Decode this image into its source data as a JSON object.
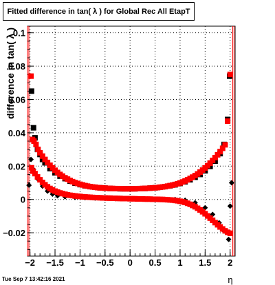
{
  "title": "Fitted difference in tan( λ ) for Global Rec All EtapT",
  "timestamp": "Tue Sep  7 13:42:16 2021",
  "chart_data": {
    "type": "scatter",
    "title": "Fitted difference in tan( λ ) for Global Rec All EtapT",
    "xlabel": "η",
    "ylabel": "difference in tan( λ )",
    "xlim": [
      -2.05,
      2.1
    ],
    "ylim": [
      -0.034,
      0.104
    ],
    "xticks": [
      -2,
      -1.5,
      -1,
      -0.5,
      0,
      0.5,
      1,
      1.5,
      2
    ],
    "xtick_labels": [
      "−2",
      "−1.5",
      "−1",
      "−0.5",
      "0",
      "0.5",
      "1",
      "1.5",
      "2"
    ],
    "yticks": [
      -0.02,
      0,
      0.02,
      0.04,
      0.06,
      0.08,
      0.1
    ],
    "ytick_labels": [
      "−0.02",
      "0",
      "0.02",
      "0.04",
      "0.06",
      "0.08",
      "0.1"
    ],
    "grid": true,
    "vertical_lines_red": [
      -2.05,
      2.05
    ],
    "series": [
      {
        "style": "black-square",
        "color": "#000000",
        "points": [
          [
            -1.97,
            0.065
          ],
          [
            -1.93,
            0.043
          ],
          [
            -1.9,
            0.037
          ],
          [
            -1.85,
            0.03
          ],
          [
            -1.8,
            0.027
          ],
          [
            -1.75,
            0.024
          ],
          [
            -1.7,
            0.022
          ],
          [
            -1.6,
            0.0185
          ],
          [
            -1.5,
            0.016
          ],
          [
            -1.4,
            0.014
          ],
          [
            -1.3,
            0.0125
          ],
          [
            -1.2,
            0.011
          ],
          [
            -1.1,
            0.0098
          ],
          [
            -1.0,
            0.0089
          ],
          [
            -0.9,
            0.0082
          ],
          [
            -0.8,
            0.0077
          ],
          [
            -0.7,
            0.0073
          ],
          [
            -0.6,
            0.007
          ],
          [
            -0.5,
            0.0068
          ],
          [
            -0.4,
            0.0066
          ],
          [
            -0.3,
            0.0065
          ],
          [
            -0.2,
            0.0064
          ],
          [
            -0.1,
            0.0064
          ],
          [
            0.0,
            0.0064
          ],
          [
            0.1,
            0.0064
          ],
          [
            0.2,
            0.0065
          ],
          [
            0.3,
            0.0066
          ],
          [
            0.4,
            0.0068
          ],
          [
            0.5,
            0.007
          ],
          [
            0.6,
            0.0073
          ],
          [
            0.7,
            0.0077
          ],
          [
            0.8,
            0.0082
          ],
          [
            0.9,
            0.0088
          ],
          [
            1.0,
            0.0096
          ],
          [
            1.1,
            0.0106
          ],
          [
            1.2,
            0.0118
          ],
          [
            1.3,
            0.0133
          ],
          [
            1.4,
            0.015
          ],
          [
            1.5,
            0.0172
          ],
          [
            1.6,
            0.0198
          ],
          [
            1.7,
            0.023
          ],
          [
            1.8,
            0.0275
          ],
          [
            1.88,
            0.033
          ],
          [
            1.95,
            0.048
          ],
          [
            1.99,
            0.074
          ]
        ]
      },
      {
        "style": "red-square",
        "color": "#ff0000",
        "points": [
          [
            -1.98,
            0.074
          ],
          [
            -1.95,
            0.036
          ],
          [
            -1.92,
            0.035
          ],
          [
            -1.88,
            0.033
          ],
          [
            -1.84,
            0.03
          ],
          [
            -1.8,
            0.028
          ],
          [
            -1.75,
            0.026
          ],
          [
            -1.7,
            0.024
          ],
          [
            -1.65,
            0.0222
          ],
          [
            -1.6,
            0.0205
          ],
          [
            -1.55,
            0.019
          ],
          [
            -1.5,
            0.0175
          ],
          [
            -1.45,
            0.0162
          ],
          [
            -1.4,
            0.015
          ],
          [
            -1.35,
            0.014
          ],
          [
            -1.3,
            0.013
          ],
          [
            -1.25,
            0.0122
          ],
          [
            -1.2,
            0.0114
          ],
          [
            -1.15,
            0.0107
          ],
          [
            -1.1,
            0.0101
          ],
          [
            -1.05,
            0.0096
          ],
          [
            -1.0,
            0.0091
          ],
          [
            -0.95,
            0.0087
          ],
          [
            -0.9,
            0.0083
          ],
          [
            -0.85,
            0.008
          ],
          [
            -0.8,
            0.0077
          ],
          [
            -0.75,
            0.0075
          ],
          [
            -0.7,
            0.0073
          ],
          [
            -0.65,
            0.0071
          ],
          [
            -0.6,
            0.007
          ],
          [
            -0.55,
            0.0069
          ],
          [
            -0.5,
            0.0068
          ],
          [
            -0.45,
            0.0067
          ],
          [
            -0.4,
            0.0066
          ],
          [
            -0.35,
            0.0066
          ],
          [
            -0.3,
            0.0065
          ],
          [
            -0.25,
            0.0065
          ],
          [
            -0.2,
            0.0065
          ],
          [
            -0.15,
            0.0064
          ],
          [
            -0.1,
            0.0064
          ],
          [
            -0.05,
            0.0064
          ],
          [
            0.0,
            0.0064
          ],
          [
            0.05,
            0.0064
          ],
          [
            0.1,
            0.0064
          ],
          [
            0.15,
            0.0065
          ],
          [
            0.2,
            0.0065
          ],
          [
            0.25,
            0.0066
          ],
          [
            0.3,
            0.0066
          ],
          [
            0.35,
            0.0067
          ],
          [
            0.4,
            0.0068
          ],
          [
            0.45,
            0.0069
          ],
          [
            0.5,
            0.007
          ],
          [
            0.55,
            0.0071
          ],
          [
            0.6,
            0.0073
          ],
          [
            0.65,
            0.0075
          ],
          [
            0.7,
            0.0077
          ],
          [
            0.75,
            0.008
          ],
          [
            0.8,
            0.0083
          ],
          [
            0.85,
            0.0086
          ],
          [
            0.9,
            0.009
          ],
          [
            0.95,
            0.0094
          ],
          [
            1.0,
            0.0099
          ],
          [
            1.05,
            0.0105
          ],
          [
            1.1,
            0.0111
          ],
          [
            1.15,
            0.0118
          ],
          [
            1.2,
            0.0126
          ],
          [
            1.25,
            0.0134
          ],
          [
            1.3,
            0.0143
          ],
          [
            1.35,
            0.0153
          ],
          [
            1.4,
            0.0164
          ],
          [
            1.45,
            0.0176
          ],
          [
            1.5,
            0.0189
          ],
          [
            1.55,
            0.0203
          ],
          [
            1.6,
            0.0218
          ],
          [
            1.65,
            0.0234
          ],
          [
            1.7,
            0.0251
          ],
          [
            1.75,
            0.0268
          ],
          [
            1.8,
            0.0287
          ],
          [
            1.85,
            0.0307
          ],
          [
            1.9,
            0.0328
          ],
          [
            1.95,
            0.047
          ],
          [
            2.0,
            0.075
          ]
        ]
      },
      {
        "style": "black-diamond",
        "color": "#000000",
        "points": [
          [
            -2.02,
            0.0085
          ],
          [
            -1.98,
            0.024
          ],
          [
            -1.93,
            0.018
          ],
          [
            -1.85,
            0.0125
          ],
          [
            -1.75,
            0.008
          ],
          [
            -1.65,
            0.005
          ],
          [
            -1.55,
            0.0032
          ],
          [
            -1.45,
            0.0022
          ],
          [
            -1.3,
            0.0016
          ],
          [
            -1.1,
            0.0012
          ],
          [
            -0.9,
            0.001
          ],
          [
            -0.7,
            0.0008
          ],
          [
            -0.5,
            0.0006
          ],
          [
            -0.3,
            0.0005
          ],
          [
            0.0,
            0.0004
          ],
          [
            0.3,
            0.0002
          ],
          [
            0.6,
            0.0001
          ],
          [
            0.9,
            0.0
          ],
          [
            1.1,
            -0.0005
          ],
          [
            1.3,
            -0.002
          ],
          [
            1.5,
            -0.005
          ],
          [
            1.65,
            -0.009
          ],
          [
            1.78,
            -0.014
          ],
          [
            1.88,
            -0.019
          ],
          [
            1.97,
            -0.024
          ],
          [
            2.0,
            -0.004
          ],
          [
            2.03,
            0.01
          ]
        ]
      },
      {
        "style": "red-square",
        "color": "#ff0000",
        "points": [
          [
            -1.97,
            0.019
          ],
          [
            -1.94,
            0.017
          ],
          [
            -1.9,
            0.0155
          ],
          [
            -1.85,
            0.0135
          ],
          [
            -1.8,
            0.0118
          ],
          [
            -1.75,
            0.0102
          ],
          [
            -1.7,
            0.0088
          ],
          [
            -1.65,
            0.0076
          ],
          [
            -1.6,
            0.0066
          ],
          [
            -1.55,
            0.0057
          ],
          [
            -1.5,
            0.005
          ],
          [
            -1.45,
            0.0044
          ],
          [
            -1.4,
            0.0039
          ],
          [
            -1.35,
            0.0035
          ],
          [
            -1.3,
            0.0031
          ],
          [
            -1.25,
            0.0028
          ],
          [
            -1.2,
            0.0025
          ],
          [
            -1.15,
            0.0023
          ],
          [
            -1.1,
            0.0021
          ],
          [
            -1.05,
            0.0019
          ],
          [
            -1.0,
            0.0018
          ],
          [
            -0.95,
            0.0016
          ],
          [
            -0.9,
            0.0015
          ],
          [
            -0.85,
            0.0014
          ],
          [
            -0.8,
            0.0013
          ],
          [
            -0.75,
            0.0012
          ],
          [
            -0.7,
            0.0011
          ],
          [
            -0.65,
            0.0011
          ],
          [
            -0.6,
            0.001
          ],
          [
            -0.55,
            0.0009
          ],
          [
            -0.5,
            0.0009
          ],
          [
            -0.45,
            0.0008
          ],
          [
            -0.4,
            0.0008
          ],
          [
            -0.35,
            0.0007
          ],
          [
            -0.3,
            0.0007
          ],
          [
            -0.25,
            0.0006
          ],
          [
            -0.2,
            0.0006
          ],
          [
            -0.15,
            0.0005
          ],
          [
            -0.1,
            0.0005
          ],
          [
            -0.05,
            0.0005
          ],
          [
            0.0,
            0.0004
          ],
          [
            0.05,
            0.0004
          ],
          [
            0.1,
            0.0004
          ],
          [
            0.15,
            0.0003
          ],
          [
            0.2,
            0.0003
          ],
          [
            0.25,
            0.0003
          ],
          [
            0.3,
            0.0002
          ],
          [
            0.35,
            0.0002
          ],
          [
            0.4,
            0.0002
          ],
          [
            0.45,
            0.0001
          ],
          [
            0.5,
            0.0001
          ],
          [
            0.55,
            0.0001
          ],
          [
            0.6,
            0.0
          ],
          [
            0.65,
            0.0
          ],
          [
            0.7,
            -0.0001
          ],
          [
            0.75,
            -0.0002
          ],
          [
            0.8,
            -0.0003
          ],
          [
            0.85,
            -0.0004
          ],
          [
            0.9,
            -0.0006
          ],
          [
            0.95,
            -0.0008
          ],
          [
            1.0,
            -0.0011
          ],
          [
            1.05,
            -0.0014
          ],
          [
            1.1,
            -0.0018
          ],
          [
            1.15,
            -0.0023
          ],
          [
            1.2,
            -0.0029
          ],
          [
            1.25,
            -0.0036
          ],
          [
            1.3,
            -0.0044
          ],
          [
            1.35,
            -0.0053
          ],
          [
            1.4,
            -0.0063
          ],
          [
            1.45,
            -0.0074
          ],
          [
            1.5,
            -0.0086
          ],
          [
            1.55,
            -0.0099
          ],
          [
            1.6,
            -0.0112
          ],
          [
            1.65,
            -0.0125
          ],
          [
            1.7,
            -0.0139
          ],
          [
            1.75,
            -0.0152
          ],
          [
            1.8,
            -0.0165
          ],
          [
            1.85,
            -0.0177
          ],
          [
            1.9,
            -0.0188
          ],
          [
            1.95,
            -0.0197
          ],
          [
            2.0,
            -0.0203
          ]
        ]
      }
    ]
  }
}
